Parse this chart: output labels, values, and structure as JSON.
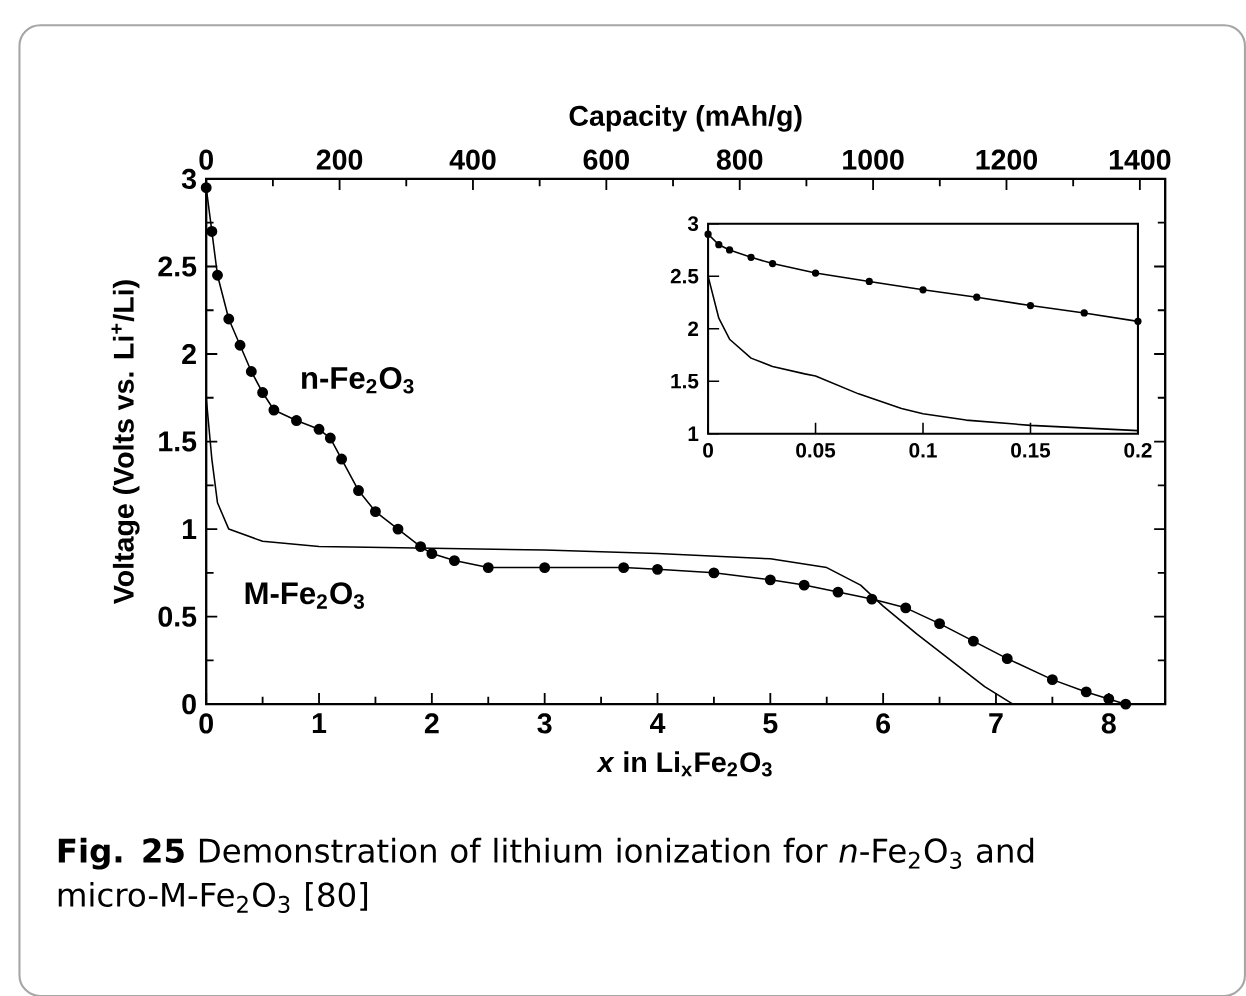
{
  "chart_data": [
    {
      "type": "line",
      "x2label": "Capacity (mAh/g)",
      "xlabel": "*x* in Li$_{x}$Fe$_{2}$O$_{3}$",
      "ylabel": "Voltage (Volts vs. Li$^{+}$/Li)",
      "xlim": [
        0,
        8.5
      ],
      "ylim": [
        0,
        3
      ],
      "x2lim": [
        0,
        1438
      ],
      "xticks": [
        0,
        1,
        2,
        3,
        4,
        5,
        6,
        7,
        8
      ],
      "yticks": [
        0,
        0.5,
        1,
        1.5,
        2,
        2.5,
        3
      ],
      "x2ticks": [
        0,
        200,
        400,
        600,
        800,
        1000,
        1200,
        1400
      ],
      "series": [
        {
          "name": "n-Fe$_{2}$O$_{3}$",
          "color": "#000000",
          "marker": "circle",
          "x": [
            0,
            0.05,
            0.1,
            0.2,
            0.3,
            0.4,
            0.5,
            0.6,
            0.8,
            1.0,
            1.1,
            1.2,
            1.35,
            1.5,
            1.7,
            1.9,
            2.0,
            2.2,
            2.5,
            3.0,
            3.7,
            4.0,
            4.5,
            5.0,
            5.3,
            5.6,
            5.9,
            6.2,
            6.5,
            6.8,
            7.1,
            7.5,
            7.8,
            8.0,
            8.15
          ],
          "values": [
            2.95,
            2.7,
            2.45,
            2.2,
            2.05,
            1.9,
            1.78,
            1.68,
            1.62,
            1.57,
            1.52,
            1.4,
            1.22,
            1.1,
            1.0,
            0.9,
            0.86,
            0.82,
            0.78,
            0.78,
            0.78,
            0.77,
            0.75,
            0.71,
            0.68,
            0.64,
            0.6,
            0.55,
            0.46,
            0.36,
            0.26,
            0.14,
            0.07,
            0.03,
            0.0
          ]
        },
        {
          "name": "M-Fe$_{2}$O$_{3}$",
          "color": "#000000",
          "marker": "none",
          "x": [
            0,
            0.05,
            0.1,
            0.2,
            0.5,
            1,
            2,
            3,
            4,
            5,
            5.5,
            5.8,
            6.0,
            6.3,
            6.6,
            6.9,
            7.15
          ],
          "values": [
            1.75,
            1.4,
            1.15,
            1.0,
            0.93,
            0.9,
            0.89,
            0.88,
            0.86,
            0.83,
            0.78,
            0.68,
            0.56,
            0.4,
            0.25,
            0.1,
            0.0
          ]
        }
      ],
      "annotations": [
        "**Fig. 25**  Demonstration of lithium ionization for *n*-Fe$_{2}$O$_{3}$ and micro-M-Fe$_{2}$O$_{3}$ [80]"
      ]
    },
    {
      "type": "line",
      "xlim": [
        0,
        0.2
      ],
      "ylim": [
        1,
        3
      ],
      "xticks": [
        0,
        0.05,
        0.1,
        0.15,
        0.2
      ],
      "yticks": [
        1,
        1.5,
        2,
        2.5,
        3
      ],
      "series": [
        {
          "color": "#000000",
          "marker": "circle",
          "x": [
            0,
            0.005,
            0.01,
            0.02,
            0.03,
            0.05,
            0.075,
            0.1,
            0.125,
            0.15,
            0.175,
            0.2
          ],
          "values": [
            2.9,
            2.8,
            2.75,
            2.68,
            2.62,
            2.53,
            2.45,
            2.37,
            2.3,
            2.22,
            2.15,
            2.07
          ]
        },
        {
          "color": "#000000",
          "marker": "none",
          "x": [
            0,
            0.005,
            0.01,
            0.02,
            0.03,
            0.045,
            0.05,
            0.07,
            0.09,
            0.1,
            0.12,
            0.15,
            0.2
          ],
          "values": [
            2.5,
            2.1,
            1.9,
            1.72,
            1.64,
            1.57,
            1.55,
            1.38,
            1.24,
            1.19,
            1.13,
            1.08,
            1.03
          ]
        }
      ]
    }
  ]
}
